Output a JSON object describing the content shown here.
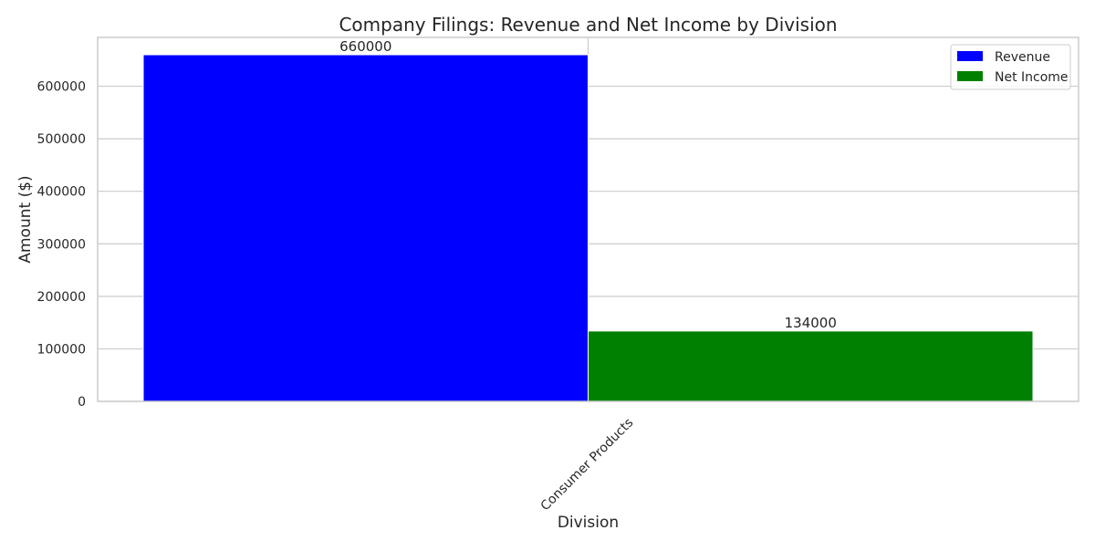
{
  "chart_data": {
    "type": "bar",
    "title": "Company Filings: Revenue and Net Income by Division",
    "xlabel": "Division",
    "ylabel": "Amount ($)",
    "categories": [
      "Consumer Products"
    ],
    "series": [
      {
        "name": "Revenue",
        "values": [
          660000
        ],
        "color": "#0000ff"
      },
      {
        "name": "Net Income",
        "values": [
          134000
        ],
        "color": "#008000"
      }
    ],
    "ylim": [
      0,
      693000
    ],
    "yticks": [
      0,
      100000,
      200000,
      300000,
      400000,
      500000,
      600000
    ],
    "ytick_labels": [
      "0",
      "100000",
      "200000",
      "300000",
      "400000",
      "500000",
      "600000"
    ],
    "data_labels": [
      "660000",
      "134000"
    ],
    "grid": true,
    "legend_position": "top-right"
  }
}
